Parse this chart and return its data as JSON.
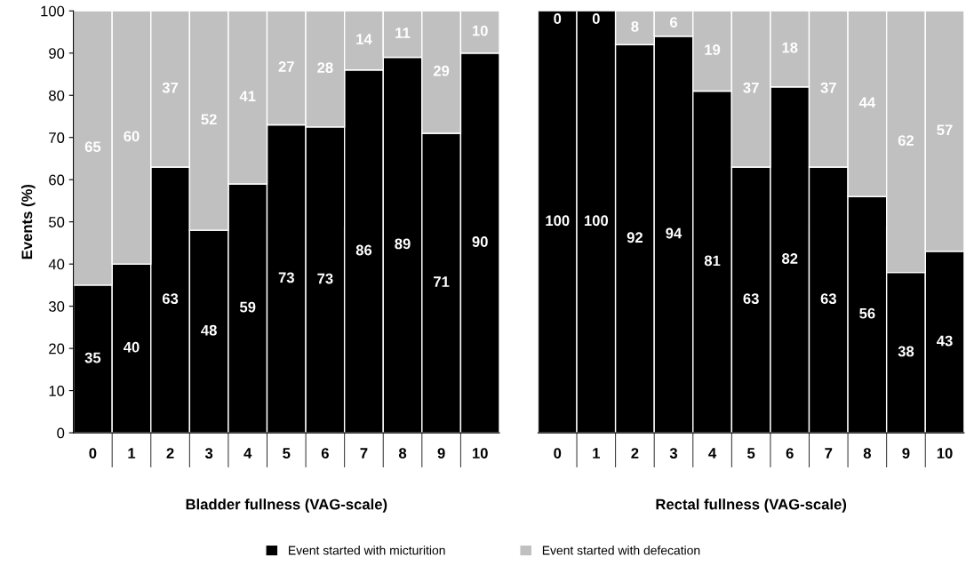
{
  "chart_data": [
    {
      "type": "bar",
      "stacked": true,
      "xlabel": "Bladder fullness (VAG-scale)",
      "ylabel": "Events (%)",
      "categories": [
        "0",
        "1",
        "2",
        "3",
        "4",
        "5",
        "6",
        "7",
        "8",
        "9",
        "10"
      ],
      "ylim": [
        0,
        100
      ],
      "yticks": [
        0,
        10,
        20,
        30,
        40,
        50,
        60,
        70,
        80,
        90,
        100
      ],
      "legend": "bottom",
      "series": [
        {
          "name": "Event started with micturition",
          "color": "#000000",
          "values": [
            35,
            40,
            63,
            48,
            59,
            73,
            72.5,
            86,
            89,
            71,
            90
          ],
          "value_labels": [
            "35",
            "40",
            "63",
            "48",
            "59",
            "73",
            "73",
            "86",
            "89",
            "71",
            "90"
          ]
        },
        {
          "name": "Event started with defecation",
          "color": "#c0c0c0",
          "values": [
            65,
            60,
            37,
            52,
            41,
            27,
            27.5,
            14,
            11,
            29,
            10
          ],
          "value_labels": [
            "65",
            "60",
            "37",
            "52",
            "41",
            "27",
            "28",
            "14",
            "11",
            "29",
            "10"
          ]
        }
      ]
    },
    {
      "type": "bar",
      "stacked": true,
      "xlabel": "Rectal fullness (VAG-scale)",
      "categories": [
        "0",
        "1",
        "2",
        "3",
        "4",
        "5",
        "6",
        "7",
        "8",
        "9",
        "10"
      ],
      "ylim": [
        0,
        100
      ],
      "tick_labels": "x",
      "data_labels": true,
      "series": [
        {
          "color": "#000000",
          "values": [
            100,
            100,
            92,
            94,
            81,
            63,
            82,
            63,
            56,
            38,
            43
          ]
        },
        {
          "color": "#c0c0c0",
          "values": [
            0,
            0,
            8,
            6,
            19,
            37,
            18,
            37,
            44,
            62,
            57
          ]
        }
      ]
    }
  ]
}
